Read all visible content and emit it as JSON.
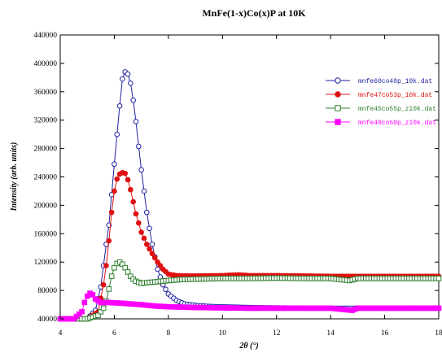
{
  "chart_data": {
    "type": "scatter",
    "title": "MnFe(1-x)Co(x)P at 10K",
    "xlabel": "2θ (°)",
    "ylabel": "Intensity (arb. units)",
    "xlim": [
      4,
      18
    ],
    "ylim": [
      40000,
      440000
    ],
    "x_ticks": [
      4,
      6,
      8,
      10,
      12,
      14,
      16,
      18
    ],
    "y_ticks": [
      40000,
      80000,
      120000,
      160000,
      200000,
      240000,
      280000,
      320000,
      360000,
      400000,
      440000
    ],
    "grid": false,
    "legend_position": "right",
    "series": [
      {
        "name": "mnfe60co40p_10k.dat",
        "color": "#1f1fa0",
        "marker": "circle-open",
        "points": [
          [
            4.0,
            40000
          ],
          [
            4.5,
            40000
          ],
          [
            5.0,
            40000
          ],
          [
            5.3,
            52000
          ],
          [
            5.5,
            85000
          ],
          [
            5.7,
            145000
          ],
          [
            5.8,
            172000
          ],
          [
            5.9,
            215000
          ],
          [
            6.0,
            258000
          ],
          [
            6.1,
            300000
          ],
          [
            6.2,
            340000
          ],
          [
            6.3,
            378000
          ],
          [
            6.4,
            388000
          ],
          [
            6.5,
            385000
          ],
          [
            6.6,
            372000
          ],
          [
            6.7,
            348000
          ],
          [
            6.8,
            318000
          ],
          [
            6.9,
            283000
          ],
          [
            7.0,
            250000
          ],
          [
            7.2,
            190000
          ],
          [
            7.4,
            145000
          ],
          [
            7.6,
            110000
          ],
          [
            7.8,
            88000
          ],
          [
            8.0,
            75000
          ],
          [
            8.3,
            66000
          ],
          [
            8.6,
            61000
          ],
          [
            9.0,
            59000
          ],
          [
            9.5,
            57500
          ],
          [
            10.0,
            57000
          ],
          [
            11.0,
            56000
          ],
          [
            12.0,
            55500
          ],
          [
            13.0,
            55000
          ],
          [
            14.0,
            55000
          ],
          [
            15.0,
            55000
          ],
          [
            16.0,
            55000
          ],
          [
            17.0,
            55000
          ],
          [
            18.0,
            55000
          ]
        ]
      },
      {
        "name": "mnfe47co53p_10k.dat",
        "color": "#e01010",
        "marker": "circle-filled",
        "points": [
          [
            4.0,
            40000
          ],
          [
            4.5,
            40000
          ],
          [
            5.0,
            40000
          ],
          [
            5.4,
            50000
          ],
          [
            5.6,
            88000
          ],
          [
            5.7,
            115000
          ],
          [
            5.8,
            150000
          ],
          [
            5.9,
            190000
          ],
          [
            6.0,
            220000
          ],
          [
            6.1,
            237000
          ],
          [
            6.2,
            244000
          ],
          [
            6.3,
            246000
          ],
          [
            6.4,
            245000
          ],
          [
            6.5,
            236000
          ],
          [
            6.6,
            222000
          ],
          [
            6.7,
            205000
          ],
          [
            6.8,
            188000
          ],
          [
            6.9,
            175000
          ],
          [
            7.0,
            162000
          ],
          [
            7.2,
            145000
          ],
          [
            7.4,
            132000
          ],
          [
            7.6,
            120000
          ],
          [
            7.8,
            110000
          ],
          [
            8.0,
            103000
          ],
          [
            8.3,
            101000
          ],
          [
            8.6,
            100500
          ],
          [
            9.0,
            100500
          ],
          [
            10.0,
            101000
          ],
          [
            10.6,
            102000
          ],
          [
            11.0,
            101000
          ],
          [
            12.0,
            101000
          ],
          [
            13.0,
            100500
          ],
          [
            14.0,
            100000
          ],
          [
            15.0,
            100000
          ],
          [
            16.0,
            100000
          ],
          [
            17.0,
            100000
          ],
          [
            18.0,
            100000
          ]
        ]
      },
      {
        "name": "mnfe45co55p_z10k.dat",
        "color": "#2e7d2e",
        "marker": "square-open",
        "points": [
          [
            4.0,
            40000
          ],
          [
            4.5,
            40000
          ],
          [
            5.0,
            40000
          ],
          [
            5.4,
            45000
          ],
          [
            5.6,
            55000
          ],
          [
            5.7,
            65000
          ],
          [
            5.8,
            82000
          ],
          [
            5.9,
            100000
          ],
          [
            6.0,
            112000
          ],
          [
            6.1,
            118000
          ],
          [
            6.2,
            120000
          ],
          [
            6.3,
            117000
          ],
          [
            6.4,
            112000
          ],
          [
            6.5,
            106000
          ],
          [
            6.6,
            100000
          ],
          [
            6.7,
            96000
          ],
          [
            6.8,
            93000
          ],
          [
            7.0,
            90000
          ],
          [
            7.2,
            91000
          ],
          [
            7.5,
            92000
          ],
          [
            8.0,
            94000
          ],
          [
            8.5,
            95500
          ],
          [
            9.0,
            96000
          ],
          [
            10.0,
            97000
          ],
          [
            11.0,
            97000
          ],
          [
            12.0,
            97500
          ],
          [
            13.0,
            97000
          ],
          [
            14.0,
            97000
          ],
          [
            14.7,
            94000
          ],
          [
            15.0,
            97000
          ],
          [
            16.0,
            97000
          ],
          [
            17.0,
            97000
          ],
          [
            18.0,
            97000
          ]
        ]
      },
      {
        "name": "mnfe40co60p_z10k.dat",
        "color": "#ff00ff",
        "marker": "square-filled",
        "points": [
          [
            4.0,
            40000
          ],
          [
            4.5,
            40000
          ],
          [
            4.8,
            50000
          ],
          [
            4.9,
            63000
          ],
          [
            5.0,
            72000
          ],
          [
            5.1,
            76000
          ],
          [
            5.2,
            74000
          ],
          [
            5.3,
            68000
          ],
          [
            5.5,
            63000
          ],
          [
            5.8,
            63000
          ],
          [
            6.0,
            62500
          ],
          [
            6.3,
            62000
          ],
          [
            6.6,
            61000
          ],
          [
            7.0,
            60000
          ],
          [
            7.5,
            58000
          ],
          [
            8.0,
            57000
          ],
          [
            9.0,
            56000
          ],
          [
            10.0,
            55500
          ],
          [
            11.0,
            55000
          ],
          [
            12.0,
            55000
          ],
          [
            13.0,
            55000
          ],
          [
            14.0,
            55000
          ],
          [
            14.8,
            52000
          ],
          [
            15.0,
            55000
          ],
          [
            16.0,
            55000
          ],
          [
            17.0,
            55000
          ],
          [
            18.0,
            55000
          ]
        ]
      }
    ]
  }
}
